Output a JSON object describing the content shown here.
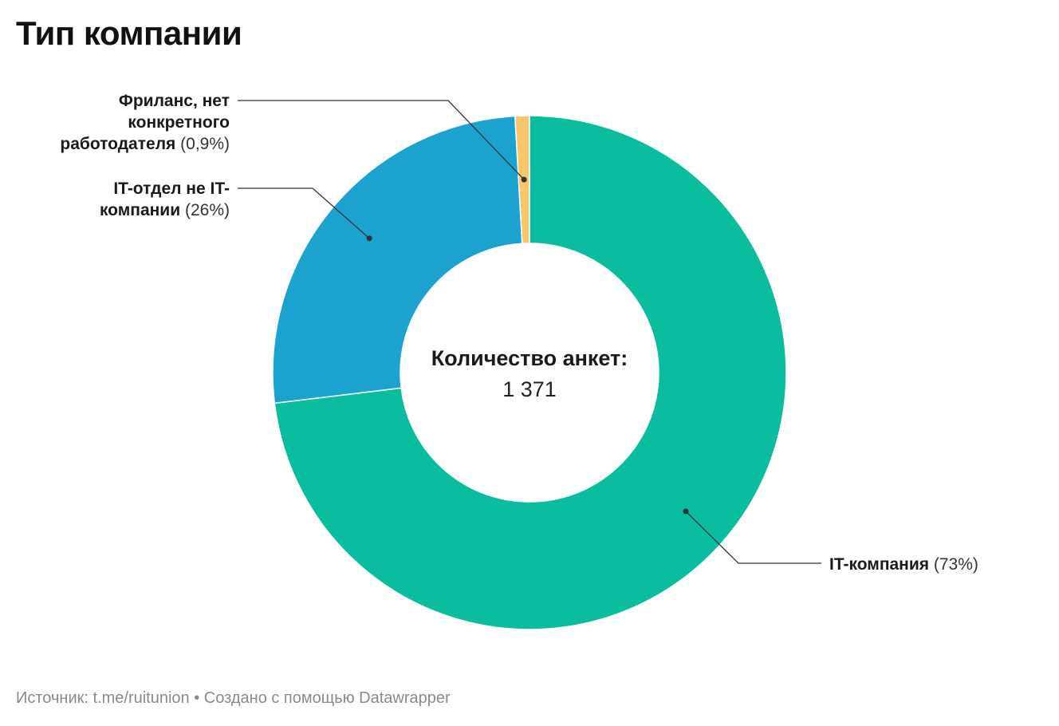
{
  "title": "Тип компании",
  "center": {
    "title": "Количество анкет:",
    "value": "1 371"
  },
  "footer": "Источник: t.me/ruitunion • Создано с помощью Datawrapper",
  "chart_data": {
    "type": "pie",
    "donut": true,
    "title": "Тип компании",
    "slices": [
      {
        "label": "IT-компания",
        "percent_label": "(73%)",
        "value": 73.1,
        "color": "#0bbd9f"
      },
      {
        "label": "IT-отдел не IT-компании",
        "label_lines": [
          "IT-отдел не IT-",
          "компании"
        ],
        "percent_label": "(26%)",
        "value": 26.0,
        "color": "#1ba2cf"
      },
      {
        "label": "Фриланс, нет конкретного работодателя",
        "label_lines": [
          "Фриланс, нет",
          "конкретного",
          "работодателя"
        ],
        "percent_label": "(0,9%)",
        "value": 0.9,
        "color": "#f6c86b"
      }
    ]
  }
}
